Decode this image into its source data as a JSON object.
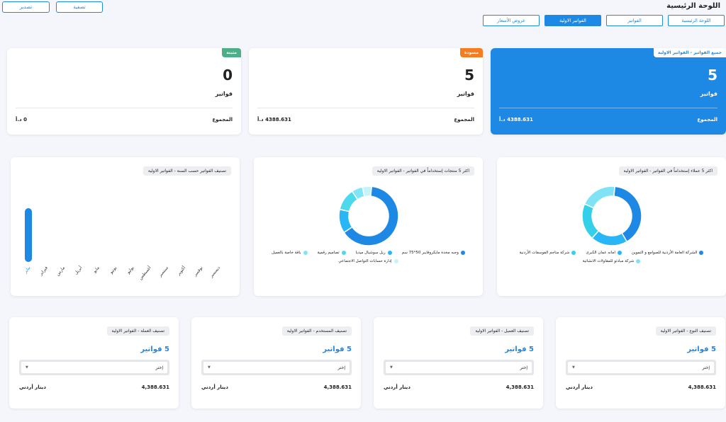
{
  "header": {
    "title": "اللوحة الرئيسية",
    "buttons": [
      "تصفية",
      "تصدير"
    ]
  },
  "tabs": [
    "اللوحة الرئيسية",
    "الفواتير",
    "الفواتير الاولية",
    "عروض الأسعار"
  ],
  "summary_cards": [
    {
      "badge": "جميع الفواتير - الفواتير الاولية",
      "count": "5",
      "unit": "فواتير",
      "total_label": "المجموع",
      "total": "4388.631 د.أ"
    },
    {
      "badge": "مسودة",
      "count": "5",
      "unit": "فواتير",
      "total_label": "المجموع",
      "total": "4388.631 د.أ"
    },
    {
      "badge": "مثبتة",
      "count": "0",
      "unit": "فواتير",
      "total_label": "المجموع",
      "total": "0 د.أ"
    }
  ],
  "chart_data": [
    {
      "type": "bar",
      "title": "تصنيف الفواتير حسب السنة - الفواتير الاولية",
      "categories": [
        "يناير",
        "فبراير",
        "مارس",
        "أبريل",
        "مايو",
        "يونيو",
        "يوليو",
        "أغسطس",
        "سبتمبر",
        "أكتوبر",
        "نوفمبر",
        "ديسمبر"
      ],
      "values": [
        5,
        0,
        0,
        0,
        0,
        0,
        0,
        0,
        0,
        0,
        0,
        0
      ],
      "color": "#1e88e5"
    },
    {
      "type": "pie",
      "title": "اكثر 5 منتجات إستخداماً في الفواتير - الفواتير الاولية",
      "categories": [
        "وجبه مخدة مايكروفايبر 50*75 سم",
        "ريل سوشيال ميديا",
        "تصاميم رقمية",
        "باقة خاصة بالعميل",
        "إدارة حسابات التواصل الاجتماعي"
      ],
      "values": [
        64,
        13,
        12,
        6,
        5
      ],
      "colors": [
        "#1e88e5",
        "#29b6f6",
        "#4dd9ec",
        "#80e6f5",
        "#c6f3fa"
      ]
    },
    {
      "type": "pie",
      "title": "اكثر 5 عملاء إستخداماً في الفواتير - الفواتير الاولية",
      "categories": [
        "الشركة العامة الأردنية للصوامع و التموين",
        "امانه عمان الكبرى",
        "شركة مناجم الفوسفات الأردنية",
        "شركة مبادئو للمقاولات الانشائية"
      ],
      "values": [
        2,
        1,
        1,
        1
      ],
      "colors": [
        "#1e88e5",
        "#29b6f6",
        "#33d0e8",
        "#7fe3f5"
      ]
    }
  ],
  "breakdown_cards": [
    {
      "badge": "تصنيف النوع - الفواتير الاولية",
      "count": "5 فواتير",
      "select": "إختر",
      "amount": "4,388.631",
      "currency": "دينار أردني"
    },
    {
      "badge": "تصنيف العميل - الفواتير الاولية",
      "count": "5 فواتير",
      "select": "إختر",
      "amount": "4,388.631",
      "currency": "دينار أردني"
    },
    {
      "badge": "تصنيف المستخدم - الفواتير الاولية",
      "count": "5 فواتير",
      "select": "إختر",
      "amount": "4,388.631",
      "currency": "دينار أردني"
    },
    {
      "badge": "تصنيف العملة - الفواتير الاولية",
      "count": "5 فواتير",
      "select": "إختر",
      "amount": "4,388.631",
      "currency": "دينار أردني"
    }
  ]
}
